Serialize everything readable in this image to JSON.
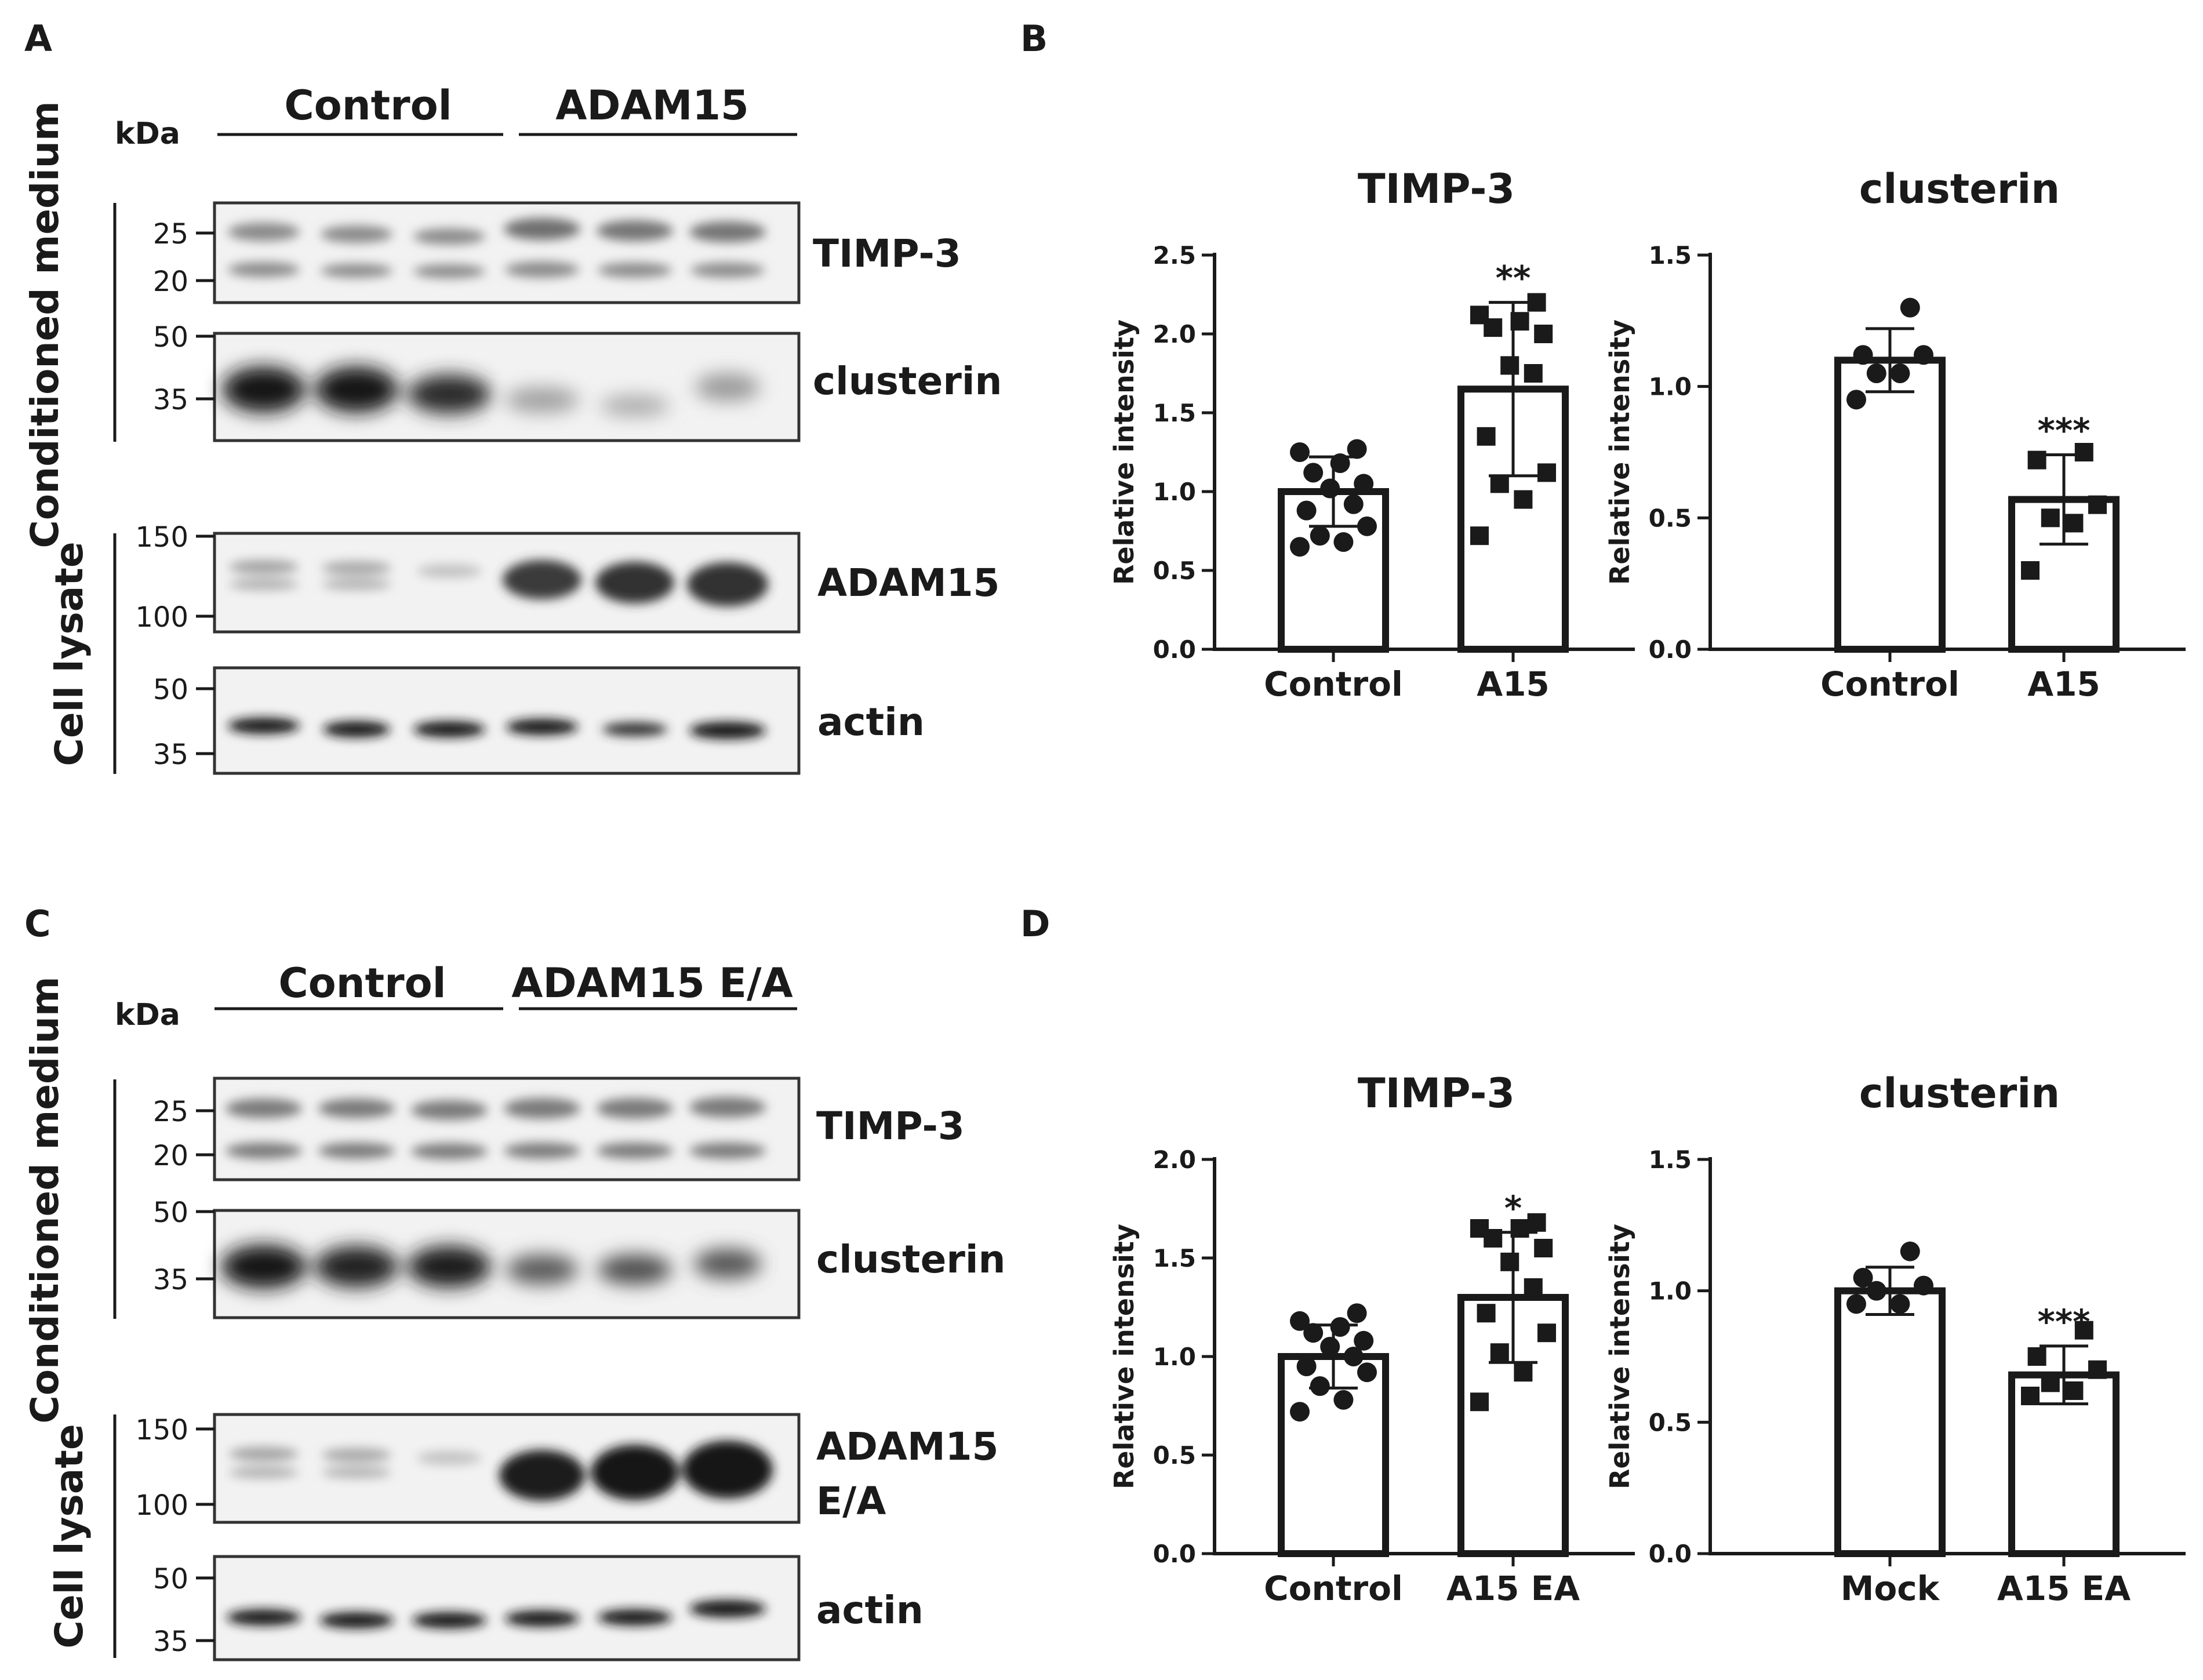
{
  "panels": {
    "A": {
      "letter": "A",
      "kda": "kDa",
      "groups": [
        "Control",
        "ADAM15"
      ],
      "side_labels": [
        "Conditioned medium",
        "Cell lysate"
      ],
      "blots": [
        {
          "protein": "TIMP-3",
          "markers": [
            "25",
            "20"
          ]
        },
        {
          "protein": "clusterin",
          "markers": [
            "50",
            "35"
          ]
        },
        {
          "protein": "ADAM15",
          "markers": [
            "150",
            "100"
          ]
        },
        {
          "protein": "actin",
          "markers": [
            "50",
            "35"
          ]
        }
      ]
    },
    "C": {
      "letter": "C",
      "kda": "kDa",
      "groups": [
        "Control",
        "ADAM15 E/A"
      ],
      "side_labels": [
        "Conditioned medium",
        "Cell lysate"
      ],
      "blots": [
        {
          "protein": "TIMP-3",
          "markers": [
            "25",
            "20"
          ]
        },
        {
          "protein": "clusterin",
          "markers": [
            "50",
            "35"
          ]
        },
        {
          "protein": "ADAM15",
          "protein2": "E/A",
          "markers": [
            "150",
            "100"
          ]
        },
        {
          "protein": "actin",
          "markers": [
            "50",
            "35"
          ]
        }
      ]
    },
    "B": {
      "letter": "B"
    },
    "D": {
      "letter": "D"
    }
  },
  "colors": {
    "ink": "#1a1a1a",
    "bar_fill": "#ffffff"
  },
  "chart_data": [
    {
      "panel": "B",
      "type": "bar",
      "title": "TIMP-3",
      "ylabel": "Relative intensity",
      "ylim": [
        0,
        2.5
      ],
      "yticks": [
        "0.0",
        "0.5",
        "1.0",
        "1.5",
        "2.0",
        "2.5"
      ],
      "categories": [
        "Control",
        "A15"
      ],
      "values": [
        1.0,
        1.65
      ],
      "errors": [
        0.22,
        0.55
      ],
      "significance": [
        "",
        "**"
      ],
      "markers": [
        "circle",
        "square"
      ],
      "points": [
        [
          0.65,
          0.68,
          0.72,
          0.78,
          0.88,
          0.92,
          1.02,
          1.05,
          1.12,
          1.18,
          1.25,
          1.27
        ],
        [
          0.72,
          0.95,
          1.05,
          1.12,
          1.35,
          1.75,
          1.8,
          2.0,
          2.04,
          2.08,
          2.12,
          2.2
        ]
      ]
    },
    {
      "panel": "B",
      "type": "bar",
      "title": "clusterin",
      "ylabel": "Relative intensity",
      "ylim": [
        0,
        1.5
      ],
      "yticks": [
        "0.0",
        "0.5",
        "1.0",
        "1.5"
      ],
      "categories": [
        "Control",
        "A15"
      ],
      "values": [
        1.1,
        0.57
      ],
      "errors": [
        0.12,
        0.17
      ],
      "significance": [
        "",
        "***"
      ],
      "markers": [
        "circle",
        "square"
      ],
      "points": [
        [
          0.95,
          1.05,
          1.05,
          1.12,
          1.12,
          1.3
        ],
        [
          0.3,
          0.48,
          0.5,
          0.55,
          0.72,
          0.75
        ]
      ]
    },
    {
      "panel": "D",
      "type": "bar",
      "title": "TIMP-3",
      "ylabel": "Relative intensity",
      "ylim": [
        0,
        2.0
      ],
      "yticks": [
        "0.0",
        "0.5",
        "1.0",
        "1.5",
        "2.0"
      ],
      "categories": [
        "Control",
        "A15 EA"
      ],
      "values": [
        1.0,
        1.3
      ],
      "errors": [
        0.16,
        0.33
      ],
      "significance": [
        "",
        "*"
      ],
      "markers": [
        "circle",
        "square"
      ],
      "points": [
        [
          0.72,
          0.78,
          0.85,
          0.92,
          0.95,
          1.0,
          1.05,
          1.08,
          1.12,
          1.15,
          1.18,
          1.22
        ],
        [
          0.77,
          0.92,
          1.02,
          1.12,
          1.22,
          1.35,
          1.48,
          1.55,
          1.6,
          1.65,
          1.65,
          1.68
        ]
      ]
    },
    {
      "panel": "D",
      "type": "bar",
      "title": "clusterin",
      "ylabel": "Relative intensity",
      "ylim": [
        0,
        1.5
      ],
      "yticks": [
        "0.0",
        "0.5",
        "1.0",
        "1.5"
      ],
      "categories": [
        "Mock",
        "A15 EA"
      ],
      "values": [
        1.0,
        0.68
      ],
      "errors": [
        0.09,
        0.11
      ],
      "significance": [
        "",
        "***"
      ],
      "markers": [
        "circle",
        "square"
      ],
      "points": [
        [
          0.95,
          0.95,
          1.0,
          1.02,
          1.05,
          1.15
        ],
        [
          0.6,
          0.62,
          0.65,
          0.7,
          0.75,
          0.85
        ]
      ]
    }
  ]
}
